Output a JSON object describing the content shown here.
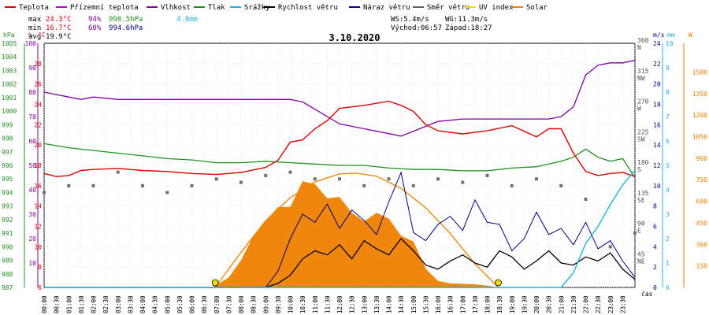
{
  "chart_data": {
    "type": "line",
    "title": "3.10.2020",
    "legend": [
      {
        "label": "Teplota",
        "color": "#e00000"
      },
      {
        "label": "Přízemní teplota",
        "color": "#c000c0"
      },
      {
        "label": "Vlhkost",
        "color": "#8000a0"
      },
      {
        "label": "Tlak",
        "color": "#209020"
      },
      {
        "label": "Srážky",
        "color": "#20b0e0"
      },
      {
        "label": "Rychlost větru",
        "color": "#000000"
      },
      {
        "label": "Náraz větru",
        "color": "#000080"
      },
      {
        "label": "Směr větru",
        "color": "#606060"
      },
      {
        "label": "UV index",
        "color": "#f0e000"
      },
      {
        "label": "Solar",
        "color": "#f08000"
      }
    ],
    "stats": {
      "max_label": "max",
      "max_temp": "24.3°C",
      "max_hum": "94%",
      "max_press": "998.5hPa",
      "rain": "4.8mm",
      "min_label": "min",
      "min_temp": "16.7°C",
      "min_hum": "60%",
      "min_press": "994.6hPa",
      "avg_label": "avg",
      "avg_temp": "19.9°C",
      "ws": "WS:5.4m/s",
      "wg": "WG:11.3m/s",
      "sunrise": "Východ:06:57",
      "sunset": "Západ:18:27"
    },
    "axes": {
      "pressure": {
        "unit": "hPa",
        "ticks": [
          "1005",
          "1004",
          "1003",
          "1002",
          "1001",
          "1000",
          "999",
          "998",
          "997",
          "996",
          "995",
          "994",
          "993",
          "992",
          "991",
          "990",
          "989",
          "988",
          "987"
        ],
        "range": [
          987,
          1005
        ]
      },
      "humidity": {
        "unit": "%",
        "ticks": [
          "100",
          "90",
          "80",
          "70",
          "60",
          "50",
          "40",
          "30",
          "20",
          "10"
        ],
        "range": [
          0,
          100
        ]
      },
      "temperature": {
        "unit": "°C",
        "ticks": [
          "28",
          "26",
          "24",
          "22",
          "20",
          "18",
          "16",
          "14",
          "12",
          "10",
          "8",
          "6"
        ],
        "range": [
          6,
          30
        ]
      },
      "direction": {
        "ticks": [
          {
            "v": "360",
            "d": "N"
          },
          {
            "v": "315",
            "d": "NW"
          },
          {
            "v": "270",
            "d": "W"
          },
          {
            "v": "225",
            "d": "SW"
          },
          {
            "v": "180",
            "d": "S"
          },
          {
            "v": "135",
            "d": "SE"
          },
          {
            "v": "90",
            "d": "E"
          },
          {
            "v": "45",
            "d": "NE"
          }
        ],
        "range": [
          0,
          360
        ]
      },
      "wind": {
        "unit": "m/s",
        "ticks": [
          "24",
          "22",
          "20",
          "18",
          "16",
          "14",
          "12",
          "10",
          "8",
          "6",
          "4",
          "2",
          "0"
        ],
        "range": [
          0,
          24
        ]
      },
      "rain": {
        "unit": "mm",
        "ticks": [
          "10",
          "9",
          "8",
          "7",
          "6",
          "5",
          "4",
          "3",
          "2",
          "1",
          "0"
        ],
        "range": [
          0,
          10
        ]
      },
      "solar": {
        "unit": "W",
        "ticks": [
          "1500",
          "1350",
          "1200",
          "1050",
          "900",
          "750",
          "600",
          "450",
          "300",
          "150"
        ],
        "range": [
          0,
          1700
        ]
      },
      "time": {
        "unit": "čas",
        "ticks": [
          "00:00",
          "00:30",
          "01:00",
          "01:30",
          "02:00",
          "02:30",
          "03:00",
          "03:30",
          "04:00",
          "04:30",
          "05:00",
          "05:30",
          "06:00",
          "06:30",
          "07:00",
          "07:30",
          "08:00",
          "08:30",
          "09:00",
          "09:30",
          "10:00",
          "10:30",
          "11:00",
          "11:30",
          "12:00",
          "12:30",
          "13:00",
          "13:30",
          "14:00",
          "14:30",
          "15:00",
          "15:30",
          "16:00",
          "16:30",
          "17:00",
          "17:30",
          "18:00",
          "18:30",
          "19:00",
          "19:30",
          "20:00",
          "20:30",
          "21:00",
          "21:30",
          "22:00",
          "22:30",
          "23:00",
          "23:30"
        ],
        "range": [
          0,
          24
        ]
      }
    },
    "series": {
      "temperature": {
        "x": [
          0,
          0.5,
          1,
          1.5,
          2,
          3,
          4,
          5,
          6,
          7,
          8,
          9,
          9.5,
          10,
          10.5,
          11,
          11.5,
          12,
          13,
          14,
          14.5,
          15,
          15.5,
          16,
          17,
          18,
          19,
          20,
          20.5,
          21,
          21.5,
          22,
          22.5,
          23,
          23.5,
          24
        ],
        "y": [
          17.2,
          16.9,
          17.0,
          17.5,
          17.6,
          17.7,
          17.5,
          17.4,
          17.2,
          17.1,
          17.3,
          17.8,
          18.5,
          20.3,
          20.5,
          21.6,
          22.4,
          23.6,
          23.9,
          24.3,
          23.9,
          23.3,
          22.0,
          21.4,
          21.1,
          21.4,
          21.9,
          20.8,
          21.6,
          21.6,
          19.2,
          17.4,
          17.0,
          17.2,
          17.3,
          16.9
        ]
      },
      "humidity": {
        "x": [
          0,
          0.5,
          1,
          1.5,
          2,
          3,
          4,
          5,
          6,
          7,
          8,
          9,
          10,
          10.5,
          11,
          11.5,
          12,
          13,
          14,
          14.5,
          15,
          16,
          17,
          18,
          19,
          20,
          20.5,
          21,
          21.5,
          22,
          22.5,
          23,
          23.5,
          24
        ],
        "y": [
          80,
          79,
          78,
          77,
          78,
          77,
          77,
          77,
          77,
          77,
          77,
          77,
          77,
          76,
          73,
          70,
          67,
          65,
          63,
          62,
          64,
          68,
          69,
          69,
          69,
          69,
          69,
          70,
          74,
          87,
          91,
          92,
          92,
          93
        ]
      },
      "pressure": {
        "x": [
          0,
          1,
          2,
          3,
          4,
          5,
          6,
          7,
          8,
          9,
          10,
          11,
          12,
          13,
          14,
          15,
          16,
          17,
          18,
          19,
          20,
          21,
          21.5,
          22,
          22.5,
          23,
          23.5,
          24
        ],
        "y": [
          997.6,
          997.3,
          997.1,
          996.9,
          996.7,
          996.5,
          996.4,
          996.2,
          996.2,
          996.3,
          996.2,
          996.1,
          996.0,
          996.0,
          995.8,
          995.7,
          995.7,
          995.6,
          995.6,
          995.8,
          995.9,
          996.3,
          996.6,
          997.2,
          996.6,
          996.3,
          996.5,
          995.1
        ]
      },
      "rain": {
        "x": [
          0,
          21,
          21.5,
          22,
          22.5,
          23,
          23.5,
          24
        ],
        "y": [
          0,
          0,
          0.6,
          1.8,
          2.5,
          3.4,
          4.2,
          4.8
        ]
      },
      "wind_speed": {
        "x": [
          0,
          9,
          9.5,
          10,
          10.5,
          11,
          11.5,
          12,
          12.5,
          13,
          13.5,
          14,
          14.5,
          15,
          15.5,
          16,
          16.5,
          17,
          17.5,
          18,
          18.5,
          19,
          19.5,
          20,
          20.5,
          21,
          21.5,
          22,
          22.5,
          23,
          23.5,
          24
        ],
        "y": [
          0,
          0,
          0.4,
          1.2,
          2.8,
          3.6,
          3.2,
          4.2,
          2.8,
          4.6,
          3.8,
          3.2,
          4.8,
          3.6,
          2.2,
          1.8,
          2.6,
          3.2,
          2.4,
          2.0,
          3.6,
          3.0,
          1.8,
          2.6,
          3.6,
          2.4,
          2.2,
          3.0,
          2.6,
          3.4,
          1.8,
          0.8
        ]
      },
      "wind_gust": {
        "x": [
          0,
          9,
          9.5,
          10,
          10.5,
          11,
          11.5,
          12,
          12.5,
          13,
          13.5,
          14,
          14.5,
          15,
          15.5,
          16,
          16.5,
          17,
          17.5,
          18,
          18.5,
          19,
          19.5,
          20,
          20.5,
          21,
          21.5,
          22,
          22.5,
          23,
          23.5,
          24
        ],
        "y": [
          0,
          0,
          1.6,
          4.8,
          7.2,
          6.4,
          8.2,
          5.8,
          7.6,
          6.6,
          5.2,
          8.4,
          11.3,
          5.4,
          4.6,
          6.2,
          7.0,
          5.6,
          8.6,
          6.4,
          6.2,
          3.6,
          4.8,
          7.4,
          5.2,
          5.8,
          4.2,
          6.4,
          3.8,
          4.6,
          2.6,
          1.0
        ]
      },
      "solar": {
        "x": [
          0,
          6.8,
          7,
          7.5,
          8,
          8.5,
          9,
          9.5,
          10,
          10.5,
          11,
          11.5,
          12,
          12.5,
          13,
          13.5,
          14,
          14.5,
          15,
          15.5,
          16,
          16.5,
          17,
          17.5,
          18,
          18.3,
          18.5,
          24
        ],
        "y": [
          0,
          0,
          15,
          70,
          190,
          360,
          460,
          560,
          560,
          740,
          720,
          620,
          630,
          520,
          460,
          520,
          480,
          360,
          320,
          130,
          45,
          28,
          25,
          22,
          12,
          5,
          0,
          0
        ]
      },
      "solar_theoretical": {
        "x": [
          6.95,
          8,
          9,
          10,
          11,
          12,
          12.7,
          13.5,
          14.5,
          15.5,
          16.5,
          17.5,
          18.45
        ],
        "y": [
          0,
          245,
          465,
          625,
          735,
          790,
          795,
          775,
          690,
          555,
          375,
          165,
          0
        ]
      },
      "wind_direction": {
        "x": [
          0,
          1,
          2,
          3,
          4,
          5,
          6,
          7,
          8,
          9,
          10,
          11,
          12,
          13,
          14,
          15,
          16,
          17,
          18,
          19,
          20,
          21,
          22,
          23,
          24
        ],
        "y": [
          140,
          150,
          150,
          170,
          150,
          140,
          150,
          160,
          155,
          165,
          170,
          160,
          160,
          150,
          160,
          150,
          160,
          155,
          165,
          150,
          160,
          150,
          130,
          60,
          80
        ]
      }
    },
    "sun_markers": {
      "sunrise_hour": 6.95,
      "sunset_hour": 18.45
    },
    "grid": true
  }
}
